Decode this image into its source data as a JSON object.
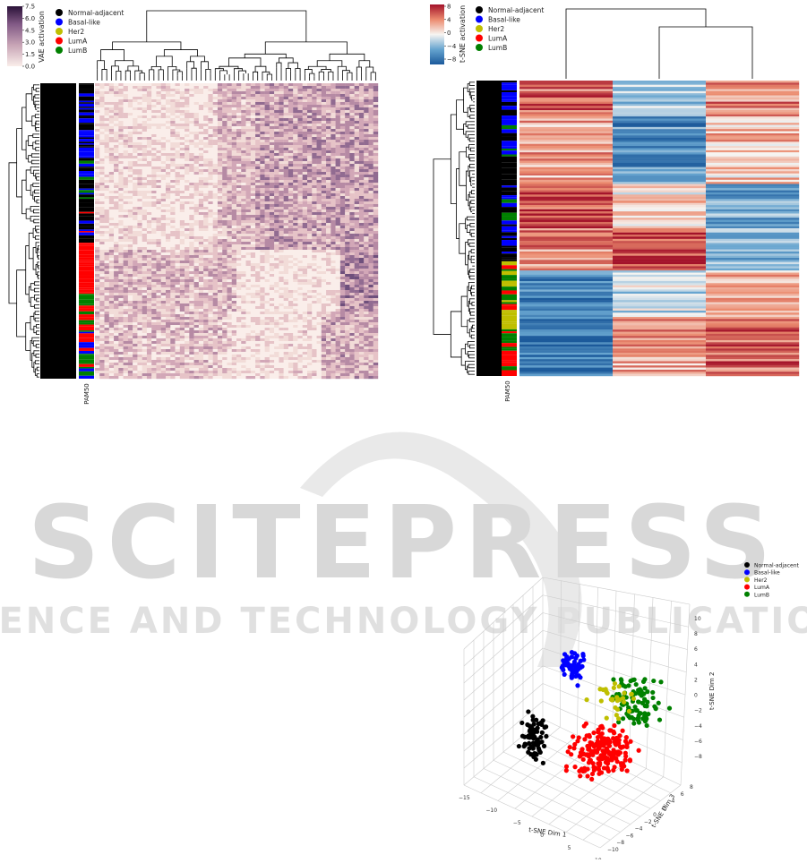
{
  "legend": {
    "items": [
      {
        "label": "Normal-adjacent",
        "color": "#000000"
      },
      {
        "label": "Basal-like",
        "color": "#0000ff"
      },
      {
        "label": "Her2",
        "color": "#bfbf00"
      },
      {
        "label": "LumA",
        "color": "#ff0000"
      },
      {
        "label": "LumB",
        "color": "#008000"
      }
    ]
  },
  "watermark": {
    "title": "SCITEPRESS",
    "subtitle": "SCIENCE AND TECHNOLOGY PUBLICATIONS"
  },
  "chart_data": [
    {
      "type": "heatmap",
      "colorbar_label": "VAE activation",
      "colorbar_ticks": [
        "7.5",
        "6.0",
        "4.5",
        "3.0",
        "1.5",
        "0.0"
      ],
      "colorbar_range": [
        0.0,
        7.5
      ],
      "row_annotation_label": "PAM50",
      "legend": [
        "Normal-adjacent",
        "Basal-like",
        "Her2",
        "LumA",
        "LumB"
      ],
      "dendrogram_rows": true,
      "dendrogram_cols": true
    },
    {
      "type": "heatmap",
      "colorbar_label": "t-SNE activation",
      "colorbar_ticks": [
        "8",
        "4",
        "0",
        "−4",
        "−8"
      ],
      "colorbar_range": [
        -8,
        8
      ],
      "row_annotation_label": "PAM50",
      "legend": [
        "Normal-adjacent",
        "Basal-like",
        "Her2",
        "LumA",
        "LumB"
      ],
      "columns": 3,
      "dendrogram_rows": true,
      "dendrogram_cols": true
    },
    {
      "type": "scatter",
      "projection": "3d",
      "xlabel": "t-SNE Dim 1",
      "ylabel": "t-SNE Dim 3",
      "zlabel": "t-SNE Dim 2",
      "x_ticks": [
        "−15",
        "−10",
        "−5",
        "0",
        "5",
        "10"
      ],
      "y_ticks": [
        "−10",
        "−8",
        "−6",
        "−4",
        "−2",
        "0",
        "2",
        "4",
        "6",
        "8"
      ],
      "z_ticks": [
        "10",
        "8",
        "6",
        "4",
        "2",
        "0",
        "−2",
        "−4",
        "−6",
        "−8"
      ],
      "legend": [
        "Normal-adjacent",
        "Basal-like",
        "Her2",
        "LumA",
        "LumB"
      ],
      "clusters": [
        {
          "name": "Normal-adjacent",
          "color": "#000000"
        },
        {
          "name": "Basal-like",
          "color": "#0000ff"
        },
        {
          "name": "Her2",
          "color": "#bfbf00"
        },
        {
          "name": "LumA",
          "color": "#ff0000"
        },
        {
          "name": "LumB",
          "color": "#008000"
        }
      ]
    }
  ]
}
